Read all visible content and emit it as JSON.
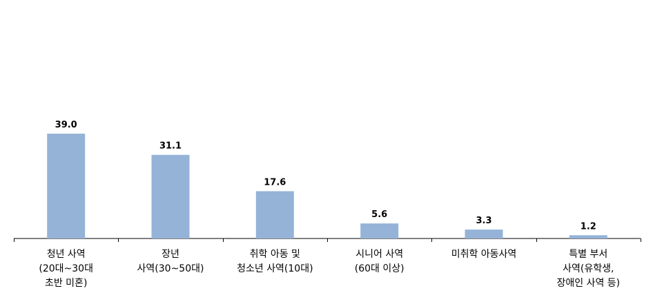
{
  "chart_data": {
    "type": "bar",
    "categories": [
      [
        "청년 사역",
        "(20대~30대",
        "초반 미혼)"
      ],
      [
        "장년",
        "사역(30~50대)"
      ],
      [
        "취학 아동 및",
        "청소년 사역(10대)"
      ],
      [
        "시니어 사역",
        "(60대 이상)"
      ],
      [
        "미취학 아동사역"
      ],
      [
        "특별 부서",
        "사역(유학생,",
        "장애인 사역 등)"
      ]
    ],
    "values": [
      39.0,
      31.1,
      17.6,
      5.6,
      3.3,
      1.2
    ],
    "value_labels": [
      "39.0",
      "31.1",
      "17.6",
      "5.6",
      "3.3",
      "1.2"
    ],
    "bar_color": "#95b3d7",
    "axis_color": "#000000",
    "grid": false,
    "legend": "none"
  }
}
